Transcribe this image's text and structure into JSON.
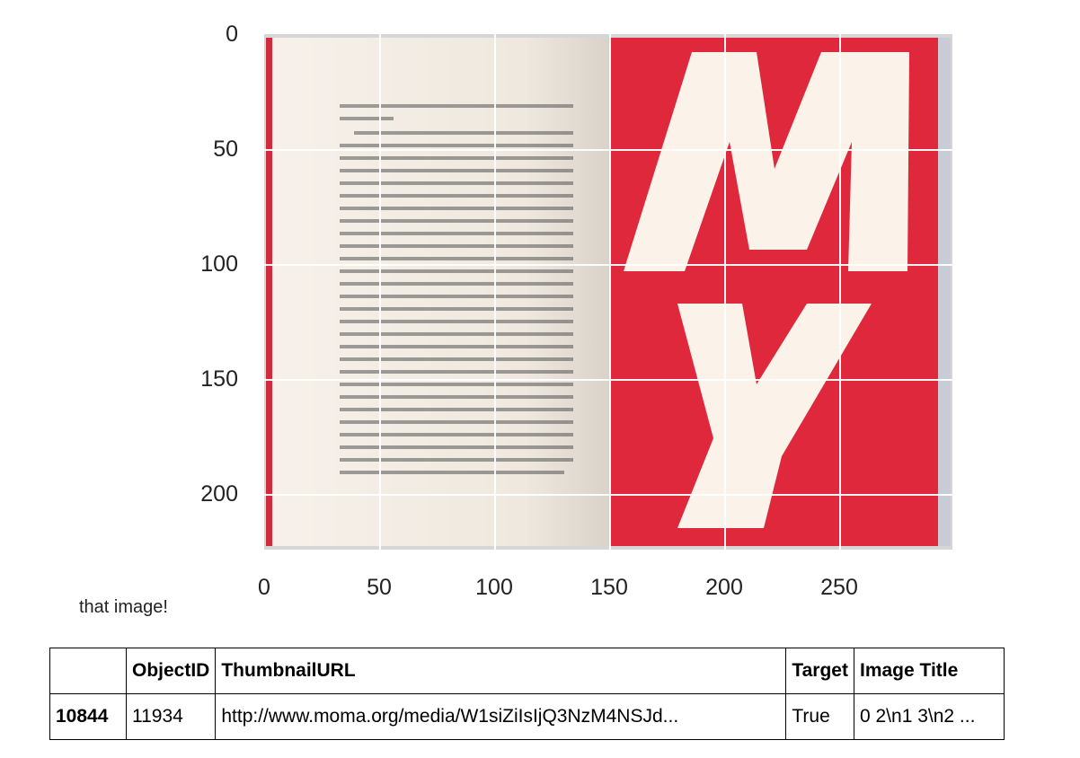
{
  "axes": {
    "y_ticks": [
      "0",
      "50",
      "100",
      "150",
      "200"
    ],
    "x_ticks": [
      "0",
      "50",
      "100",
      "150",
      "200",
      "250"
    ]
  },
  "image": {
    "left_page_color": "#f4efe7",
    "right_page_color": "#e0283c",
    "letters_color": "#fbf3ea",
    "letters": [
      "M",
      "y"
    ]
  },
  "note": "that image!",
  "table": {
    "headers": [
      "",
      "ObjectID",
      "ThumbnailURL",
      "Target",
      "Image Title"
    ],
    "rows": [
      {
        "index": "10844",
        "object_id": "11934",
        "thumbnail_url": "http://www.moma.org/media/W1siZiIsIjQ3NzM4NSJd...",
        "target": "True",
        "image_title": "0 2\\n1 3\\n2 ..."
      }
    ]
  }
}
